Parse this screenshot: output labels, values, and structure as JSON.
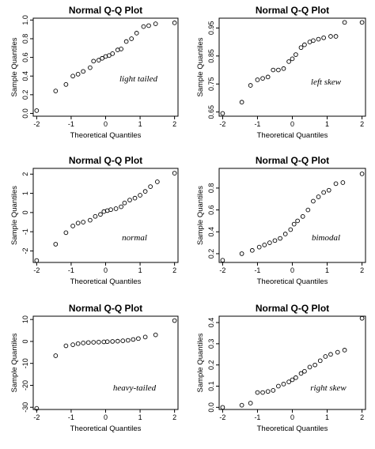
{
  "chart_data": [
    {
      "type": "scatter",
      "title": "Normal Q-Q Plot",
      "xlabel": "Theoretical Quantiles",
      "ylabel": "Sample Quantiles",
      "annotation": "light tailed",
      "xlim": [
        -2.1,
        2.1
      ],
      "ylim": [
        -0.03,
        1.02
      ],
      "xticks": [
        "-2",
        "-1",
        "0",
        "1",
        "2"
      ],
      "yticks": [
        "0.0",
        "0.2",
        "0.4",
        "0.6",
        "0.8",
        "1.0"
      ],
      "points": [
        [
          -2,
          0.03
        ],
        [
          -1.45,
          0.24
        ],
        [
          -1.15,
          0.31
        ],
        [
          -0.95,
          0.4
        ],
        [
          -0.8,
          0.42
        ],
        [
          -0.65,
          0.45
        ],
        [
          -0.45,
          0.49
        ],
        [
          -0.35,
          0.56
        ],
        [
          -0.2,
          0.57
        ],
        [
          -0.1,
          0.59
        ],
        [
          0,
          0.61
        ],
        [
          0.1,
          0.62
        ],
        [
          0.2,
          0.64
        ],
        [
          0.35,
          0.68
        ],
        [
          0.45,
          0.69
        ],
        [
          0.6,
          0.77
        ],
        [
          0.75,
          0.8
        ],
        [
          0.9,
          0.86
        ],
        [
          1.1,
          0.93
        ],
        [
          1.25,
          0.94
        ],
        [
          1.45,
          0.96
        ],
        [
          2,
          0.97
        ]
      ]
    },
    {
      "type": "scatter",
      "title": "Normal Q-Q Plot",
      "xlabel": "Theoretical Quantiles",
      "ylabel": "Sample Quantiles",
      "annotation": "left skew",
      "xlim": [
        -2.1,
        2.1
      ],
      "ylim": [
        0.635,
        0.985
      ],
      "xticks": [
        "-2",
        "-1",
        "0",
        "1",
        "2"
      ],
      "yticks": [
        "0.65",
        "0.75",
        "0.85",
        "0.95"
      ],
      "points": [
        [
          -2,
          0.645
        ],
        [
          -1.45,
          0.685
        ],
        [
          -1.2,
          0.745
        ],
        [
          -1.0,
          0.765
        ],
        [
          -0.85,
          0.77
        ],
        [
          -0.7,
          0.775
        ],
        [
          -0.55,
          0.8
        ],
        [
          -0.4,
          0.8
        ],
        [
          -0.25,
          0.805
        ],
        [
          -0.1,
          0.83
        ],
        [
          0,
          0.84
        ],
        [
          0.1,
          0.855
        ],
        [
          0.25,
          0.88
        ],
        [
          0.35,
          0.89
        ],
        [
          0.5,
          0.9
        ],
        [
          0.6,
          0.905
        ],
        [
          0.75,
          0.91
        ],
        [
          0.9,
          0.915
        ],
        [
          1.1,
          0.92
        ],
        [
          1.25,
          0.92
        ],
        [
          1.5,
          0.97
        ],
        [
          2,
          0.97
        ]
      ]
    },
    {
      "type": "scatter",
      "title": "Normal Q-Q Plot",
      "xlabel": "Theoretical Quantiles",
      "ylabel": "Sample Quantiles",
      "annotation": "normal",
      "xlim": [
        -2.1,
        2.1
      ],
      "ylim": [
        -2.6,
        2.3
      ],
      "xticks": [
        "-2",
        "-1",
        "0",
        "1",
        "2"
      ],
      "yticks": [
        "-2",
        "-1",
        "0",
        "1",
        "2"
      ],
      "points": [
        [
          -2,
          -2.5
        ],
        [
          -1.45,
          -1.65
        ],
        [
          -1.15,
          -1.05
        ],
        [
          -0.95,
          -0.7
        ],
        [
          -0.8,
          -0.55
        ],
        [
          -0.65,
          -0.5
        ],
        [
          -0.45,
          -0.4
        ],
        [
          -0.3,
          -0.2
        ],
        [
          -0.15,
          -0.1
        ],
        [
          -0.05,
          0.05
        ],
        [
          0.05,
          0.1
        ],
        [
          0.15,
          0.15
        ],
        [
          0.3,
          0.2
        ],
        [
          0.45,
          0.3
        ],
        [
          0.55,
          0.5
        ],
        [
          0.7,
          0.65
        ],
        [
          0.85,
          0.75
        ],
        [
          1.0,
          0.9
        ],
        [
          1.15,
          1.1
        ],
        [
          1.3,
          1.35
        ],
        [
          1.5,
          1.6
        ],
        [
          2,
          2.05
        ]
      ]
    },
    {
      "type": "scatter",
      "title": "Normal Q-Q Plot",
      "xlabel": "Theoretical Quantiles",
      "ylabel": "Sample Quantiles",
      "annotation": "bimodal",
      "xlim": [
        -2.1,
        2.1
      ],
      "ylim": [
        0.12,
        0.98
      ],
      "xticks": [
        "-2",
        "-1",
        "0",
        "1",
        "2"
      ],
      "yticks": [
        "0.2",
        "0.4",
        "0.6",
        "0.8"
      ],
      "points": [
        [
          -2,
          0.14
        ],
        [
          -1.45,
          0.2
        ],
        [
          -1.15,
          0.23
        ],
        [
          -0.95,
          0.26
        ],
        [
          -0.8,
          0.28
        ],
        [
          -0.65,
          0.3
        ],
        [
          -0.5,
          0.32
        ],
        [
          -0.35,
          0.34
        ],
        [
          -0.2,
          0.38
        ],
        [
          -0.05,
          0.42
        ],
        [
          0.05,
          0.47
        ],
        [
          0.15,
          0.5
        ],
        [
          0.3,
          0.54
        ],
        [
          0.45,
          0.6
        ],
        [
          0.6,
          0.68
        ],
        [
          0.75,
          0.72
        ],
        [
          0.9,
          0.76
        ],
        [
          1.05,
          0.78
        ],
        [
          1.25,
          0.84
        ],
        [
          1.45,
          0.85
        ],
        [
          2,
          0.93
        ]
      ]
    },
    {
      "type": "scatter",
      "title": "Normal Q-Q Plot",
      "xlabel": "Theoretical Quantiles",
      "ylabel": "Sample Quantiles",
      "annotation": "heavy-tailed",
      "xlim": [
        -2.1,
        2.1
      ],
      "ylim": [
        -31,
        11.5
      ],
      "xticks": [
        "-2",
        "-1",
        "0",
        "1",
        "2"
      ],
      "yticks": [
        "-30",
        "-20",
        "-10",
        "0",
        "10"
      ],
      "points": [
        [
          -2,
          -30.5
        ],
        [
          -1.45,
          -6.5
        ],
        [
          -1.15,
          -2
        ],
        [
          -0.95,
          -1.5
        ],
        [
          -0.8,
          -1
        ],
        [
          -0.65,
          -0.7
        ],
        [
          -0.5,
          -0.5
        ],
        [
          -0.35,
          -0.4
        ],
        [
          -0.2,
          -0.3
        ],
        [
          -0.05,
          -0.2
        ],
        [
          0.05,
          -0.1
        ],
        [
          0.2,
          0
        ],
        [
          0.35,
          0.1
        ],
        [
          0.5,
          0.3
        ],
        [
          0.65,
          0.5
        ],
        [
          0.8,
          0.9
        ],
        [
          0.95,
          1.3
        ],
        [
          1.15,
          2
        ],
        [
          1.45,
          3
        ],
        [
          2,
          9.5
        ]
      ]
    },
    {
      "type": "scatter",
      "title": "Normal Q-Q Plot",
      "xlabel": "Theoretical Quantiles",
      "ylabel": "Sample Quantiles",
      "annotation": "right skew",
      "xlim": [
        -2.1,
        2.1
      ],
      "ylim": [
        -0.01,
        0.43
      ],
      "xticks": [
        "-2",
        "-1",
        "0",
        "1",
        "2"
      ],
      "yticks": [
        "0.0",
        "0.1",
        "0.2",
        "0.3",
        "0.4"
      ],
      "points": [
        [
          -2,
          0.0
        ],
        [
          -1.45,
          0.01
        ],
        [
          -1.2,
          0.02
        ],
        [
          -1.0,
          0.07
        ],
        [
          -0.85,
          0.07
        ],
        [
          -0.7,
          0.075
        ],
        [
          -0.55,
          0.08
        ],
        [
          -0.4,
          0.1
        ],
        [
          -0.25,
          0.11
        ],
        [
          -0.1,
          0.12
        ],
        [
          0,
          0.13
        ],
        [
          0.1,
          0.14
        ],
        [
          0.25,
          0.16
        ],
        [
          0.35,
          0.17
        ],
        [
          0.5,
          0.19
        ],
        [
          0.65,
          0.2
        ],
        [
          0.8,
          0.22
        ],
        [
          0.95,
          0.24
        ],
        [
          1.1,
          0.25
        ],
        [
          1.3,
          0.26
        ],
        [
          1.5,
          0.27
        ],
        [
          2,
          0.42
        ]
      ]
    }
  ]
}
